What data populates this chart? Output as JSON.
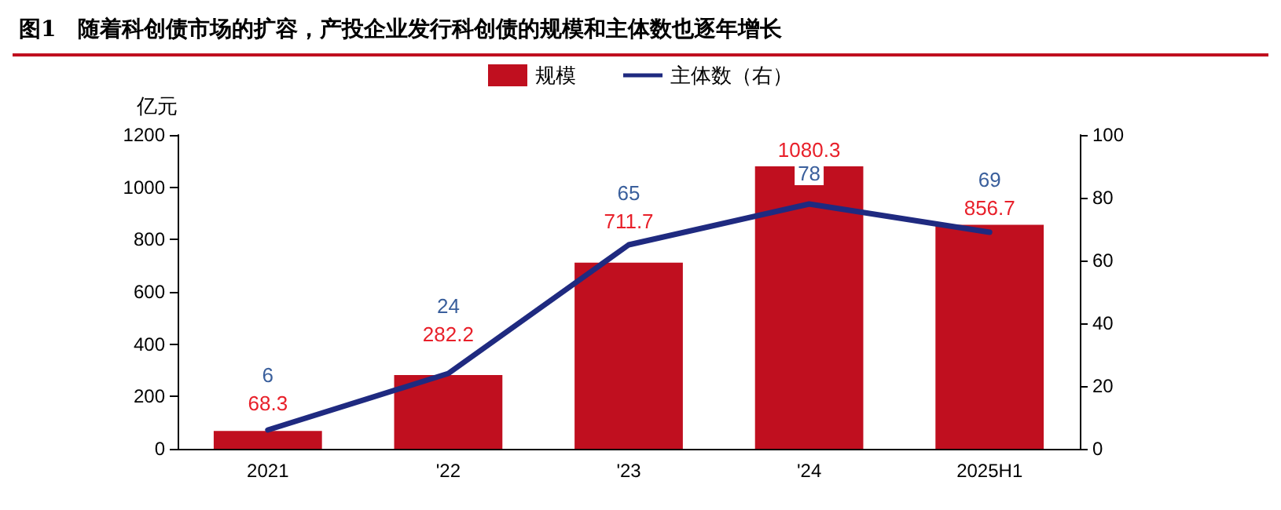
{
  "chart_data": {
    "type": "bar",
    "title": "图1　随着科创债市场的扩容，产投企业发行科创债的规模和主体数也逐年增长",
    "categories": [
      "2021",
      "'22",
      "'23",
      "'24",
      "2025H1"
    ],
    "series": [
      {
        "name": "规模",
        "color": "#c00f1f",
        "values": [
          68.3,
          282.2,
          711.7,
          1080.3,
          856.7
        ]
      },
      {
        "name": "主体数（右）",
        "type": "line",
        "axis": "y2",
        "color": "#1f2a80",
        "values": [
          6,
          24,
          65,
          78,
          69
        ]
      }
    ],
    "ylabel": "亿元",
    "ylim": [
      0,
      1200
    ],
    "yticks": [
      0,
      200,
      400,
      600,
      800,
      1000,
      1200
    ],
    "y2lim": [
      0,
      100
    ],
    "y2ticks": [
      0,
      20,
      40,
      60,
      80,
      100
    ],
    "data_labels": true,
    "legend": "top",
    "grid": false,
    "marker": "none",
    "line_style": "solid"
  }
}
